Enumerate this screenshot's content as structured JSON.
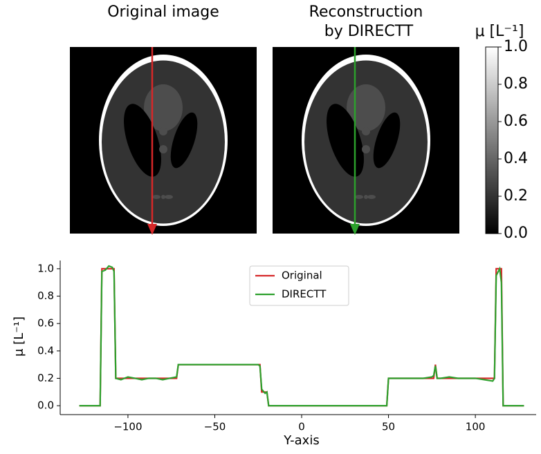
{
  "chart_data": {
    "type": "line",
    "image_titles": [
      "Original image",
      [
        "Reconstruction",
        "by DIRECTT"
      ]
    ],
    "colorbar": {
      "label": "μ [L⁻¹]",
      "lim": [
        0,
        1
      ],
      "ticks": [
        {
          "value": 0,
          "label": "0.0"
        },
        {
          "value": 0.2,
          "label": "0.2"
        },
        {
          "value": 0.4,
          "label": "0.4"
        },
        {
          "value": 0.6,
          "label": "0.6"
        },
        {
          "value": 0.8,
          "label": "0.8"
        },
        {
          "value": 1,
          "label": "1.0"
        }
      ]
    },
    "xlabel": "Y-axis",
    "ylabel": "μ [L⁻¹]",
    "x": [
      -128,
      -116,
      -115,
      -113,
      -111,
      -109,
      -108,
      -107,
      -104,
      -100,
      -96,
      -92,
      -88,
      -84,
      -80,
      -76,
      -72,
      -71,
      -65,
      -55,
      -45,
      -35,
      -25,
      -24,
      -23,
      -21,
      -20,
      -19,
      0,
      49,
      50,
      55,
      60,
      65,
      70,
      75,
      76,
      77,
      78,
      80,
      85,
      90,
      95,
      100,
      105,
      110,
      111,
      112,
      114,
      115,
      116,
      128
    ],
    "series": [
      {
        "name": "Original",
        "color": "#d62728",
        "values": [
          0,
          0,
          1,
          1,
          1,
          1,
          1,
          0.2,
          0.2,
          0.2,
          0.2,
          0.2,
          0.2,
          0.2,
          0.2,
          0.2,
          0.2,
          0.3,
          0.3,
          0.3,
          0.3,
          0.3,
          0.3,
          0.3,
          0.1,
          0.1,
          0.1,
          0,
          0,
          0,
          0.2,
          0.2,
          0.2,
          0.2,
          0.2,
          0.2,
          0.2,
          0.3,
          0.2,
          0.2,
          0.2,
          0.2,
          0.2,
          0.2,
          0.2,
          0.2,
          0.2,
          1,
          1,
          1,
          0,
          0
        ]
      },
      {
        "name": "DIRECTT",
        "color": "#2ca02c",
        "values": [
          0,
          0,
          0.98,
          0.99,
          1.02,
          1.01,
          0.98,
          0.2,
          0.19,
          0.21,
          0.2,
          0.19,
          0.2,
          0.2,
          0.19,
          0.2,
          0.21,
          0.3,
          0.3,
          0.3,
          0.3,
          0.3,
          0.3,
          0.29,
          0.12,
          0.09,
          0.1,
          0,
          0,
          0,
          0.2,
          0.2,
          0.2,
          0.2,
          0.2,
          0.21,
          0.22,
          0.29,
          0.2,
          0.2,
          0.21,
          0.2,
          0.2,
          0.2,
          0.19,
          0.18,
          0.2,
          0.95,
          1,
          0.9,
          0,
          0
        ]
      }
    ],
    "xlim": [
      -139,
      135
    ],
    "ylim": [
      -0.065,
      1.06
    ],
    "xticks": [
      {
        "value": -100,
        "label": "−100"
      },
      {
        "value": -50,
        "label": "−50"
      },
      0,
      50,
      100
    ],
    "yticks": [
      {
        "value": 0,
        "label": "0.0"
      },
      {
        "value": 0.2,
        "label": "0.2"
      },
      {
        "value": 0.4,
        "label": "0.4"
      },
      {
        "value": 0.6,
        "label": "0.6"
      },
      {
        "value": 0.8,
        "label": "0.8"
      },
      {
        "value": 1,
        "label": "1.0"
      }
    ],
    "legend": "upper center"
  }
}
